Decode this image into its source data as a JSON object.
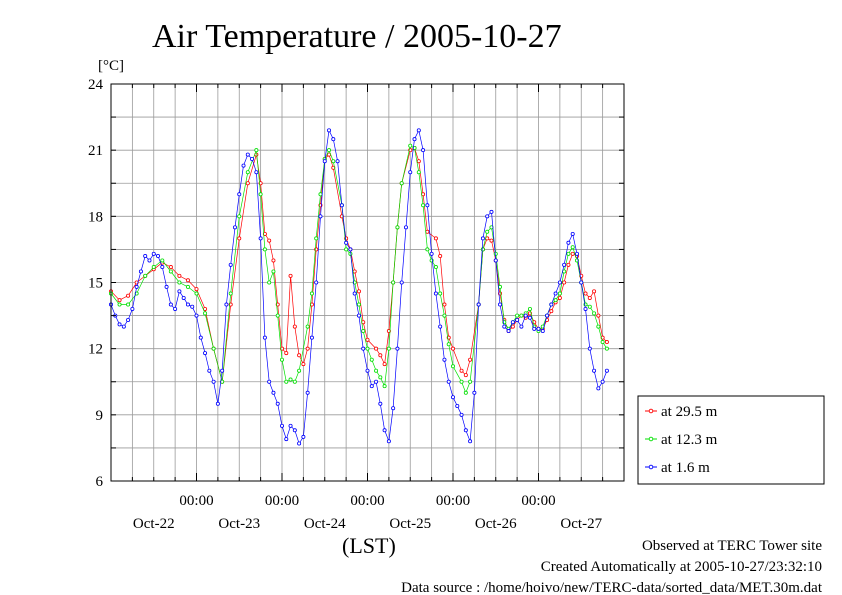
{
  "chart_data": {
    "type": "line",
    "title": "Air Temperature / 2005-10-27",
    "ylabel": "[°C]",
    "xlabel": "(LST)",
    "ylim": [
      6,
      24
    ],
    "yticks": [
      6,
      9,
      12,
      15,
      18,
      21,
      24
    ],
    "xlim": [
      0,
      6.0
    ],
    "x_units": "days since 2005-10-21 12:00 LST",
    "xtick_time_labels": [
      {
        "pos": 1.0,
        "label": "00:00"
      },
      {
        "pos": 2.0,
        "label": "00:00"
      },
      {
        "pos": 3.0,
        "label": "00:00"
      },
      {
        "pos": 4.0,
        "label": "00:00"
      },
      {
        "pos": 5.0,
        "label": "00:00"
      }
    ],
    "xtick_day_labels": [
      {
        "pos": 0.5,
        "label": "Oct-22"
      },
      {
        "pos": 1.5,
        "label": "Oct-23"
      },
      {
        "pos": 2.5,
        "label": "Oct-24"
      },
      {
        "pos": 3.5,
        "label": "Oct-25"
      },
      {
        "pos": 4.5,
        "label": "Oct-26"
      },
      {
        "pos": 5.5,
        "label": "Oct-27"
      }
    ],
    "grid": true,
    "legend_position": "right-bottom",
    "series": [
      {
        "name": "at 29.5 m",
        "color": "#ff0000",
        "points": [
          [
            0.0,
            14.6
          ],
          [
            0.1,
            14.2
          ],
          [
            0.2,
            14.4
          ],
          [
            0.3,
            15.0
          ],
          [
            0.4,
            15.3
          ],
          [
            0.5,
            15.6
          ],
          [
            0.6,
            15.9
          ],
          [
            0.7,
            15.7
          ],
          [
            0.8,
            15.3
          ],
          [
            0.9,
            15.1
          ],
          [
            1.0,
            14.7
          ],
          [
            1.1,
            13.8
          ],
          [
            1.2,
            12.0
          ],
          [
            1.3,
            10.5
          ],
          [
            1.4,
            14.0
          ],
          [
            1.5,
            17.0
          ],
          [
            1.6,
            19.5
          ],
          [
            1.7,
            20.8
          ],
          [
            1.75,
            19.5
          ],
          [
            1.8,
            17.2
          ],
          [
            1.85,
            16.9
          ],
          [
            1.9,
            16.0
          ],
          [
            1.95,
            14.0
          ],
          [
            2.0,
            12.0
          ],
          [
            2.05,
            11.8
          ],
          [
            2.1,
            15.3
          ],
          [
            2.15,
            13.0
          ],
          [
            2.2,
            11.7
          ],
          [
            2.25,
            11.3
          ],
          [
            2.3,
            12.0
          ],
          [
            2.35,
            14.0
          ],
          [
            2.4,
            16.5
          ],
          [
            2.45,
            18.5
          ],
          [
            2.5,
            20.6
          ],
          [
            2.55,
            20.8
          ],
          [
            2.6,
            20.2
          ],
          [
            2.7,
            18.0
          ],
          [
            2.75,
            17.0
          ],
          [
            2.8,
            16.5
          ],
          [
            2.85,
            15.5
          ],
          [
            2.9,
            14.6
          ],
          [
            2.95,
            13.2
          ],
          [
            3.0,
            12.4
          ],
          [
            3.1,
            12.0
          ],
          [
            3.15,
            11.7
          ],
          [
            3.2,
            11.3
          ],
          [
            3.25,
            12.8
          ],
          [
            3.3,
            15.0
          ],
          [
            3.35,
            17.5
          ],
          [
            3.4,
            19.5
          ],
          [
            3.5,
            21.0
          ],
          [
            3.55,
            21.1
          ],
          [
            3.6,
            20.5
          ],
          [
            3.65,
            19.0
          ],
          [
            3.7,
            17.3
          ],
          [
            3.8,
            17.0
          ],
          [
            3.85,
            16.2
          ],
          [
            3.9,
            14.0
          ],
          [
            3.95,
            12.5
          ],
          [
            4.0,
            12.0
          ],
          [
            4.1,
            11.0
          ],
          [
            4.15,
            10.8
          ],
          [
            4.2,
            11.5
          ],
          [
            4.3,
            14.0
          ],
          [
            4.35,
            16.5
          ],
          [
            4.4,
            17.0
          ],
          [
            4.45,
            16.9
          ],
          [
            4.5,
            16.0
          ],
          [
            4.55,
            14.5
          ],
          [
            4.6,
            13.3
          ],
          [
            4.65,
            12.8
          ],
          [
            4.7,
            13.0
          ],
          [
            4.75,
            13.3
          ],
          [
            4.8,
            13.5
          ],
          [
            4.85,
            13.4
          ],
          [
            4.9,
            13.6
          ],
          [
            4.95,
            13.2
          ],
          [
            5.0,
            12.9
          ],
          [
            5.05,
            12.9
          ],
          [
            5.1,
            13.3
          ],
          [
            5.15,
            13.7
          ],
          [
            5.2,
            14.1
          ],
          [
            5.25,
            14.3
          ],
          [
            5.3,
            15.0
          ],
          [
            5.35,
            15.8
          ],
          [
            5.4,
            16.3
          ],
          [
            5.45,
            16.2
          ],
          [
            5.5,
            15.3
          ],
          [
            5.55,
            14.5
          ],
          [
            5.6,
            14.3
          ],
          [
            5.65,
            14.6
          ],
          [
            5.7,
            13.5
          ],
          [
            5.75,
            12.5
          ],
          [
            5.8,
            12.3
          ]
        ]
      },
      {
        "name": "at 12.3 m",
        "color": "#00e000",
        "points": [
          [
            0.0,
            14.5
          ],
          [
            0.1,
            14.0
          ],
          [
            0.2,
            14.0
          ],
          [
            0.3,
            14.5
          ],
          [
            0.4,
            15.3
          ],
          [
            0.5,
            15.7
          ],
          [
            0.6,
            16.0
          ],
          [
            0.7,
            15.5
          ],
          [
            0.8,
            15.0
          ],
          [
            0.9,
            14.8
          ],
          [
            1.0,
            14.5
          ],
          [
            1.1,
            13.6
          ],
          [
            1.2,
            12.0
          ],
          [
            1.3,
            10.5
          ],
          [
            1.4,
            14.5
          ],
          [
            1.5,
            18.0
          ],
          [
            1.6,
            20.0
          ],
          [
            1.7,
            21.0
          ],
          [
            1.75,
            19.0
          ],
          [
            1.8,
            16.5
          ],
          [
            1.85,
            15.0
          ],
          [
            1.9,
            15.5
          ],
          [
            1.95,
            13.5
          ],
          [
            2.0,
            11.5
          ],
          [
            2.05,
            10.5
          ],
          [
            2.1,
            10.6
          ],
          [
            2.15,
            10.5
          ],
          [
            2.2,
            11.0
          ],
          [
            2.3,
            13.0
          ],
          [
            2.35,
            14.5
          ],
          [
            2.4,
            17.0
          ],
          [
            2.45,
            19.0
          ],
          [
            2.5,
            20.6
          ],
          [
            2.55,
            21.0
          ],
          [
            2.6,
            20.5
          ],
          [
            2.7,
            18.5
          ],
          [
            2.75,
            16.5
          ],
          [
            2.8,
            16.3
          ],
          [
            2.85,
            15.0
          ],
          [
            2.9,
            14.0
          ],
          [
            2.95,
            12.8
          ],
          [
            3.0,
            12.0
          ],
          [
            3.05,
            11.5
          ],
          [
            3.1,
            11.0
          ],
          [
            3.15,
            10.7
          ],
          [
            3.2,
            10.3
          ],
          [
            3.25,
            12.0
          ],
          [
            3.3,
            15.0
          ],
          [
            3.35,
            17.5
          ],
          [
            3.4,
            19.5
          ],
          [
            3.5,
            21.2
          ],
          [
            3.55,
            21.1
          ],
          [
            3.6,
            20.0
          ],
          [
            3.65,
            18.5
          ],
          [
            3.7,
            16.5
          ],
          [
            3.75,
            16.0
          ],
          [
            3.8,
            15.7
          ],
          [
            3.85,
            14.5
          ],
          [
            3.9,
            13.5
          ],
          [
            3.95,
            12.2
          ],
          [
            4.0,
            11.2
          ],
          [
            4.1,
            10.5
          ],
          [
            4.15,
            10.0
          ],
          [
            4.2,
            10.5
          ],
          [
            4.3,
            14.0
          ],
          [
            4.35,
            16.5
          ],
          [
            4.4,
            17.3
          ],
          [
            4.45,
            17.5
          ],
          [
            4.5,
            16.3
          ],
          [
            4.55,
            14.8
          ],
          [
            4.6,
            13.2
          ],
          [
            4.65,
            12.9
          ],
          [
            4.7,
            13.2
          ],
          [
            4.75,
            13.5
          ],
          [
            4.8,
            13.5
          ],
          [
            4.85,
            13.6
          ],
          [
            4.9,
            13.8
          ],
          [
            4.95,
            13.0
          ],
          [
            5.0,
            12.8
          ],
          [
            5.05,
            13.0
          ],
          [
            5.1,
            13.5
          ],
          [
            5.15,
            14.0
          ],
          [
            5.2,
            14.2
          ],
          [
            5.25,
            14.5
          ],
          [
            5.3,
            15.5
          ],
          [
            5.35,
            16.3
          ],
          [
            5.4,
            16.6
          ],
          [
            5.45,
            16.0
          ],
          [
            5.5,
            15.0
          ],
          [
            5.55,
            14.0
          ],
          [
            5.6,
            13.9
          ],
          [
            5.65,
            13.6
          ],
          [
            5.7,
            13.0
          ],
          [
            5.75,
            12.3
          ],
          [
            5.8,
            12.0
          ]
        ]
      },
      {
        "name": "at 1.6 m",
        "color": "#0000ff",
        "points": [
          [
            0.0,
            14.0
          ],
          [
            0.05,
            13.5
          ],
          [
            0.1,
            13.1
          ],
          [
            0.15,
            13.0
          ],
          [
            0.2,
            13.3
          ],
          [
            0.25,
            13.8
          ],
          [
            0.3,
            14.8
          ],
          [
            0.35,
            15.5
          ],
          [
            0.4,
            16.2
          ],
          [
            0.45,
            16.0
          ],
          [
            0.5,
            16.3
          ],
          [
            0.55,
            16.2
          ],
          [
            0.6,
            15.7
          ],
          [
            0.65,
            14.8
          ],
          [
            0.7,
            14.0
          ],
          [
            0.75,
            13.8
          ],
          [
            0.8,
            14.6
          ],
          [
            0.85,
            14.3
          ],
          [
            0.9,
            14.0
          ],
          [
            0.95,
            13.9
          ],
          [
            1.0,
            13.5
          ],
          [
            1.05,
            12.5
          ],
          [
            1.1,
            11.8
          ],
          [
            1.15,
            11.0
          ],
          [
            1.2,
            10.5
          ],
          [
            1.25,
            9.5
          ],
          [
            1.3,
            11.0
          ],
          [
            1.35,
            14.0
          ],
          [
            1.4,
            15.8
          ],
          [
            1.45,
            17.5
          ],
          [
            1.5,
            19.0
          ],
          [
            1.55,
            20.3
          ],
          [
            1.6,
            20.8
          ],
          [
            1.65,
            20.6
          ],
          [
            1.7,
            20.0
          ],
          [
            1.75,
            17.0
          ],
          [
            1.8,
            12.5
          ],
          [
            1.85,
            10.5
          ],
          [
            1.9,
            10.0
          ],
          [
            1.95,
            9.5
          ],
          [
            2.0,
            8.5
          ],
          [
            2.05,
            7.9
          ],
          [
            2.1,
            8.5
          ],
          [
            2.15,
            8.3
          ],
          [
            2.2,
            7.7
          ],
          [
            2.25,
            8.0
          ],
          [
            2.3,
            10.0
          ],
          [
            2.35,
            12.5
          ],
          [
            2.4,
            15.0
          ],
          [
            2.45,
            18.0
          ],
          [
            2.5,
            20.5
          ],
          [
            2.55,
            21.9
          ],
          [
            2.6,
            21.5
          ],
          [
            2.65,
            20.5
          ],
          [
            2.7,
            18.5
          ],
          [
            2.75,
            16.8
          ],
          [
            2.8,
            16.5
          ],
          [
            2.85,
            14.5
          ],
          [
            2.9,
            13.5
          ],
          [
            2.95,
            12.0
          ],
          [
            3.0,
            11.0
          ],
          [
            3.05,
            10.3
          ],
          [
            3.1,
            10.5
          ],
          [
            3.15,
            9.5
          ],
          [
            3.2,
            8.3
          ],
          [
            3.25,
            7.8
          ],
          [
            3.3,
            9.3
          ],
          [
            3.35,
            12.0
          ],
          [
            3.4,
            15.0
          ],
          [
            3.45,
            17.5
          ],
          [
            3.5,
            20.0
          ],
          [
            3.55,
            21.5
          ],
          [
            3.6,
            21.9
          ],
          [
            3.65,
            21.0
          ],
          [
            3.7,
            18.5
          ],
          [
            3.75,
            16.3
          ],
          [
            3.8,
            14.5
          ],
          [
            3.85,
            13.0
          ],
          [
            3.9,
            11.5
          ],
          [
            3.95,
            10.5
          ],
          [
            4.0,
            9.8
          ],
          [
            4.05,
            9.4
          ],
          [
            4.1,
            9.0
          ],
          [
            4.15,
            8.3
          ],
          [
            4.2,
            7.8
          ],
          [
            4.25,
            10.0
          ],
          [
            4.3,
            14.0
          ],
          [
            4.35,
            17.0
          ],
          [
            4.4,
            18.0
          ],
          [
            4.45,
            18.2
          ],
          [
            4.5,
            16.0
          ],
          [
            4.55,
            14.0
          ],
          [
            4.6,
            13.0
          ],
          [
            4.65,
            12.8
          ],
          [
            4.7,
            13.2
          ],
          [
            4.75,
            13.3
          ],
          [
            4.8,
            13.0
          ],
          [
            4.85,
            13.5
          ],
          [
            4.9,
            13.4
          ],
          [
            4.95,
            12.9
          ],
          [
            5.0,
            12.9
          ],
          [
            5.05,
            12.8
          ],
          [
            5.1,
            13.5
          ],
          [
            5.15,
            14.0
          ],
          [
            5.2,
            14.5
          ],
          [
            5.25,
            15.0
          ],
          [
            5.3,
            15.8
          ],
          [
            5.35,
            16.8
          ],
          [
            5.4,
            17.2
          ],
          [
            5.45,
            16.3
          ],
          [
            5.5,
            15.0
          ],
          [
            5.55,
            13.8
          ],
          [
            5.6,
            12.0
          ],
          [
            5.65,
            11.0
          ],
          [
            5.7,
            10.2
          ],
          [
            5.75,
            10.5
          ],
          [
            5.8,
            11.0
          ]
        ]
      }
    ]
  },
  "footer": {
    "line1": "Observed at TERC Tower site",
    "line2": "Created Automatically at 2005-10-27/23:32:10",
    "line3": "Data source : /home/hoivo/new/TERC-data/sorted_data/MET.30m.dat"
  }
}
